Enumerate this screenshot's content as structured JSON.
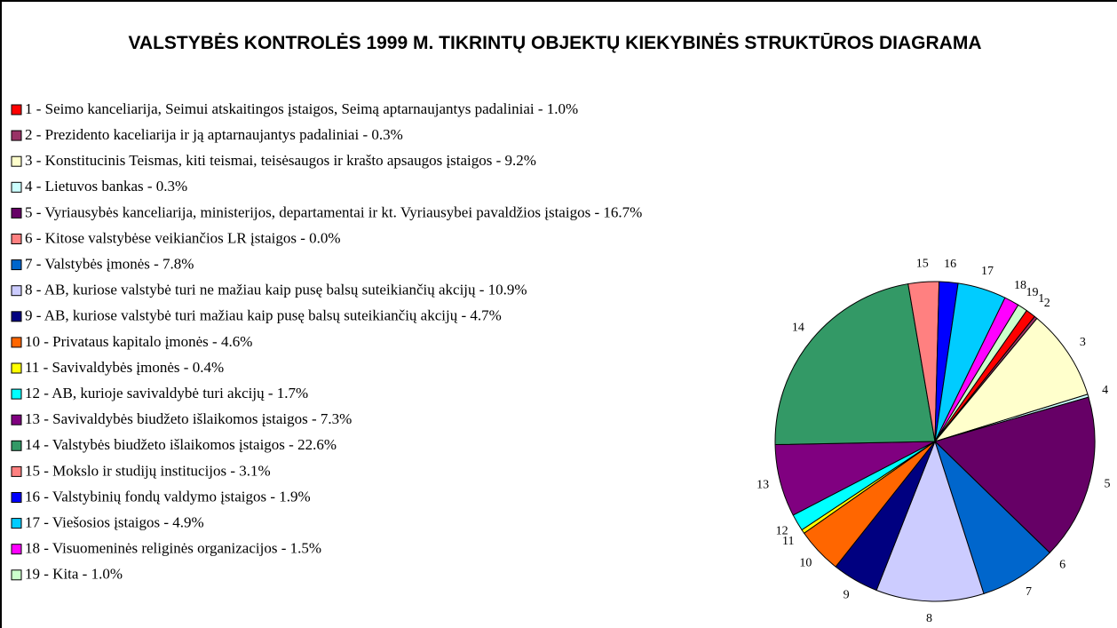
{
  "chart_data": {
    "type": "pie",
    "title": "VALSTYBĖS KONTROLĖS 1999 M. TIKRINTŲ OBJEKTŲ KIEKYBINĖS STRUKTŪROS DIAGRAMA",
    "categories": [
      "1 - Seimo kanceliarija, Seimui atskaitingos įstaigos, Seimą aptarnaujantys padaliniai - 1.0%",
      "2 - Prezidento kaceliarija ir ją aptarnaujantys padaliniai -  0.3%",
      "3 - Konstitucinis Teismas, kiti teismai, teisėsaugos ir krašto apsaugos įstaigos - 9.2%",
      "4 - Lietuvos bankas -  0.3%",
      "5 - Vyriausybės kanceliarija, ministerijos, departamentai ir kt. Vyriausybei pavaldžios įstaigos - 16.7%",
      "6 - Kitose valstybėse veikiančios LR įstaigos - 0.0%",
      "7 - Valstybės įmonės - 7.8%",
      "8 - AB, kuriose valstybė turi ne mažiau kaip pusę balsų suteikiančių akcijų - 10.9%",
      "9 - AB, kuriose valstybė turi mažiau kaip pusę balsų suteikiančių akcijų - 4.7%",
      "10 - Privataus kapitalo įmonės - 4.6%",
      "11 - Savivaldybės įmonės - 0.4%",
      "12 - AB, kurioje savivaldybė turi akcijų - 1.7%",
      "13 - Savivaldybės biudžeto išlaikomos įstaigos - 7.3%",
      "14 - Valstybės biudžeto išlaikomos įstaigos - 22.6%",
      "15 - Mokslo ir studijų institucijos - 3.1%",
      "16 - Valstybinių fondų valdymo įstaigos - 1.9%",
      "17 - Viešosios įstaigos - 4.9%",
      "18 - Visuomeninės religinės organizacijos - 1.5%",
      "19 - Kita - 1.0%"
    ],
    "slice_labels": [
      "1",
      "2",
      "3",
      "4",
      "5",
      "6",
      "7",
      "8",
      "9",
      "10",
      "11",
      "12",
      "13",
      "14",
      "15",
      "16",
      "17",
      "18",
      "19"
    ],
    "values": [
      1.0,
      0.3,
      9.2,
      0.3,
      16.7,
      0.0,
      7.8,
      10.9,
      4.7,
      4.6,
      0.4,
      1.7,
      7.3,
      22.6,
      3.1,
      1.9,
      4.9,
      1.5,
      1.0
    ],
    "colors": [
      "#ff0000",
      "#993366",
      "#ffffcc",
      "#ccffff",
      "#660066",
      "#ff8080",
      "#0066cc",
      "#ccccff",
      "#000080",
      "#ff6600",
      "#ffff00",
      "#00ffff",
      "#800080",
      "#339966",
      "#ff8080",
      "#0000ff",
      "#00ccff",
      "#ff00ff",
      "#ccffcc"
    ],
    "legend": "left"
  }
}
